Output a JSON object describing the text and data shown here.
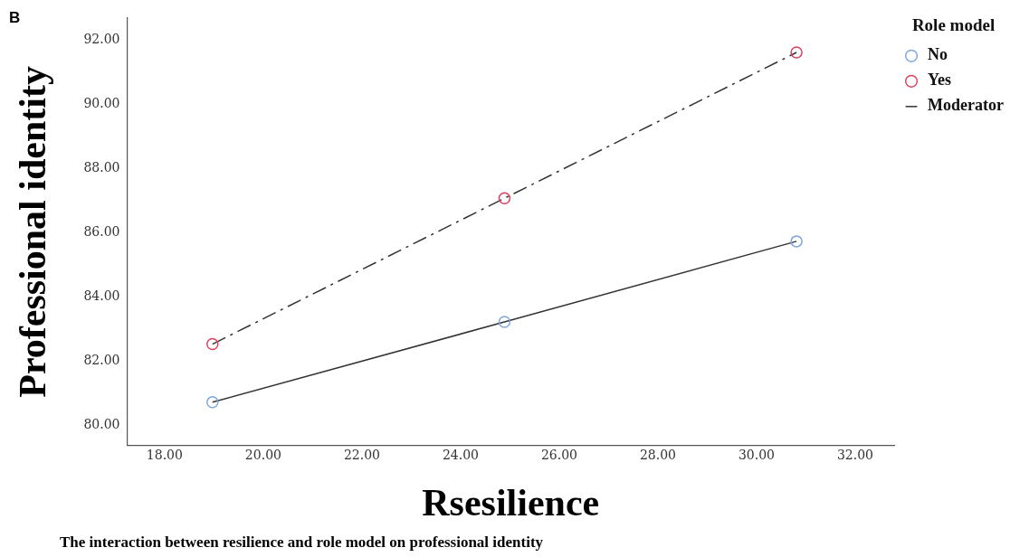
{
  "chart_data": {
    "type": "line",
    "xlabel": "Rsesilience",
    "ylabel": "Professional identity",
    "legend_title": "Role model",
    "legend": "top right",
    "marker": "circle",
    "grid": false,
    "annotations": [
      "B",
      "The interaction between resilience and role model on professional identity"
    ],
    "xlim": [
      17.24,
      32.79
    ],
    "ylim": [
      79.37,
      92.68
    ],
    "xticks": [
      {
        "value": 18,
        "label": "18.00"
      },
      {
        "value": 20,
        "label": "20.00"
      },
      {
        "value": 22,
        "label": "22.00"
      },
      {
        "value": 24,
        "label": "24.00"
      },
      {
        "value": 26,
        "label": "26.00"
      },
      {
        "value": 28,
        "label": "28.00"
      },
      {
        "value": 30,
        "label": "30.00"
      },
      {
        "value": 32,
        "label": "32.00"
      }
    ],
    "yticks": [
      {
        "value": 80,
        "label": "80.00"
      },
      {
        "value": 82,
        "label": "82.00"
      },
      {
        "value": 84,
        "label": "84.00"
      },
      {
        "value": 86,
        "label": "86.00"
      },
      {
        "value": 88,
        "label": "88.00"
      },
      {
        "value": 90,
        "label": "90.00"
      },
      {
        "value": 92,
        "label": "92.00"
      }
    ],
    "series": [
      {
        "name": "No",
        "type": "scatter",
        "color": "#7ea6e0",
        "x": [
          18.97,
          24.89,
          30.81
        ],
        "values": [
          80.72,
          83.22,
          85.73
        ]
      },
      {
        "name": "Yes",
        "type": "scatter",
        "color": "#e0405e",
        "x": [
          18.97,
          24.89,
          30.81
        ],
        "values": [
          82.53,
          87.07,
          91.61
        ]
      },
      {
        "name": "Moderator",
        "type": "line",
        "color": "#333333",
        "marker": "none",
        "line_style": "solid",
        "x": [
          18.97,
          24.89,
          30.81
        ],
        "values": [
          80.72,
          83.22,
          85.73
        ]
      },
      {
        "type": "line",
        "color": "#333333",
        "marker": "none",
        "line_style": "dashed",
        "x": [
          18.97,
          24.89,
          30.81
        ],
        "values": [
          82.53,
          87.07,
          91.61
        ]
      }
    ]
  }
}
